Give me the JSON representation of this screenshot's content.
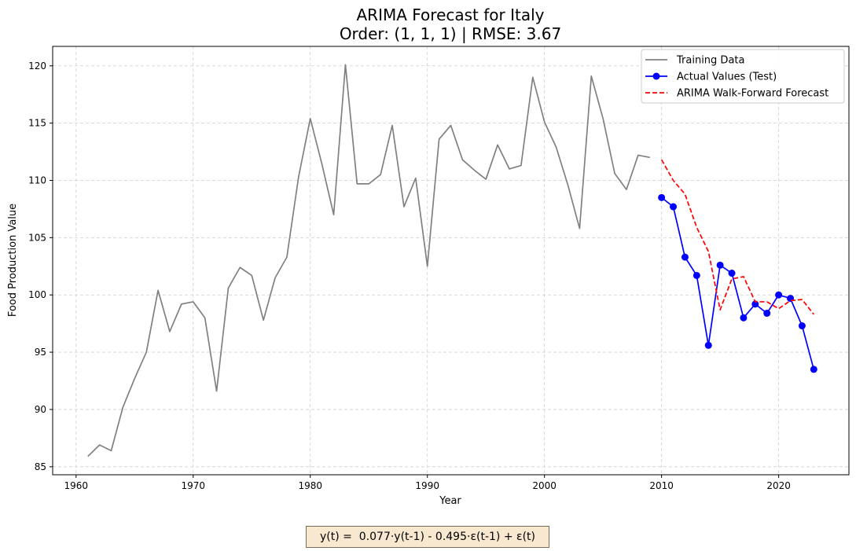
{
  "chart_data": {
    "type": "line",
    "title": "ARIMA Forecast for Italy",
    "subtitle": "Order: (1, 1, 1) | RMSE: 3.67",
    "xlabel": "Year",
    "ylabel": "Food Production Value",
    "xlim": [
      1958,
      2026
    ],
    "ylim": [
      84.3,
      121.7
    ],
    "xticks": [
      1960,
      1970,
      1980,
      1990,
      2000,
      2010,
      2020
    ],
    "yticks": [
      85,
      90,
      95,
      100,
      105,
      110,
      115,
      120
    ],
    "grid": true,
    "legend_position": "top-right",
    "series": [
      {
        "name": "Training Data",
        "color": "#808080",
        "style": "solid",
        "marker": "none",
        "x": [
          1961,
          1962,
          1963,
          1964,
          1965,
          1966,
          1967,
          1968,
          1969,
          1970,
          1971,
          1972,
          1973,
          1974,
          1975,
          1976,
          1977,
          1978,
          1979,
          1980,
          1981,
          1982,
          1983,
          1984,
          1985,
          1986,
          1987,
          1988,
          1989,
          1990,
          1991,
          1992,
          1993,
          1994,
          1995,
          1996,
          1997,
          1998,
          1999,
          2000,
          2001,
          2002,
          2003,
          2004,
          2005,
          2006,
          2007,
          2008,
          2009
        ],
        "y": [
          85.9,
          86.9,
          86.4,
          90.2,
          92.7,
          95.0,
          100.4,
          96.8,
          99.2,
          99.4,
          98.0,
          91.6,
          100.6,
          102.4,
          101.7,
          97.8,
          101.5,
          103.3,
          110.3,
          115.4,
          111.4,
          107.0,
          120.1,
          109.7,
          109.7,
          110.5,
          114.8,
          107.7,
          110.2,
          102.5,
          113.6,
          114.8,
          111.8,
          110.9,
          110.1,
          113.1,
          111.0,
          111.3,
          119.0,
          115.1,
          112.9,
          109.6,
          105.8,
          119.1,
          115.4,
          110.6,
          109.2,
          112.2,
          112.0
        ]
      },
      {
        "name": "Actual Values (Test)",
        "color": "#0000ff",
        "style": "solid",
        "marker": "circle",
        "x": [
          2010,
          2011,
          2012,
          2013,
          2014,
          2015,
          2016,
          2017,
          2018,
          2019,
          2020,
          2021,
          2022,
          2023
        ],
        "y": [
          108.5,
          107.7,
          103.3,
          101.7,
          95.6,
          102.6,
          101.9,
          98.0,
          99.2,
          98.4,
          100.0,
          99.7,
          97.3,
          93.5
        ]
      },
      {
        "name": "ARIMA Walk-Forward Forecast",
        "color": "#ff0000",
        "style": "dashed",
        "marker": "none",
        "x": [
          2010,
          2011,
          2012,
          2013,
          2014,
          2015,
          2016,
          2017,
          2018,
          2019,
          2020,
          2021,
          2022,
          2023
        ],
        "y": [
          111.8,
          110.0,
          108.8,
          105.9,
          103.8,
          98.7,
          101.4,
          101.6,
          99.4,
          99.4,
          98.8,
          99.5,
          99.6,
          98.3
        ]
      }
    ]
  },
  "formula": "y(t) =  0.077·y(t-1) - 0.495·ε(t-1) + ε(t)"
}
